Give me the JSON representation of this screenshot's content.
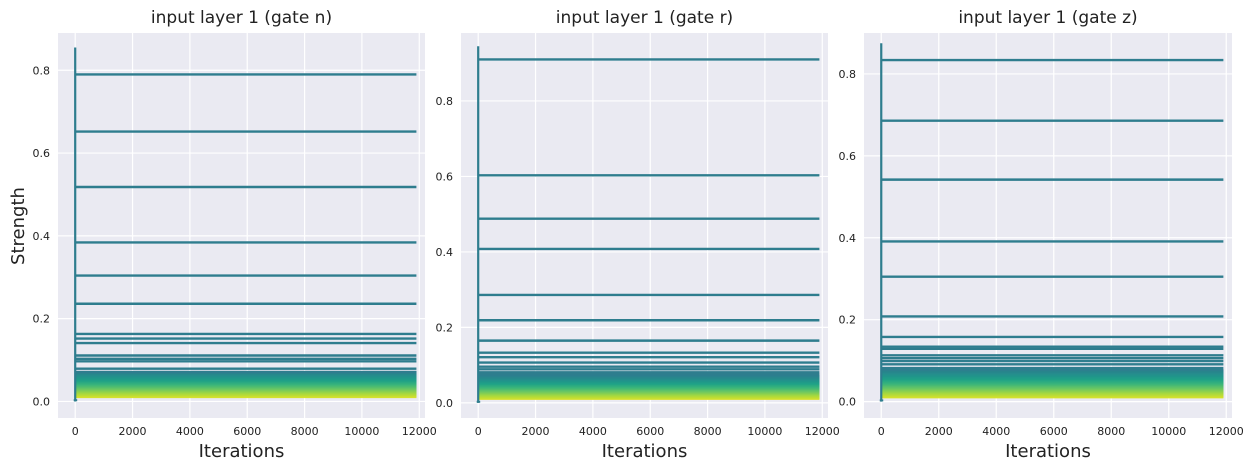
{
  "figure": {
    "ylabel": "Strength",
    "background_color": "#EAEAF2",
    "grid_color": "#FFFFFF",
    "trace_color": "#2E7D8E",
    "colormap": [
      "#2C7F8E",
      "#23908C",
      "#1FA187",
      "#3BB57A",
      "#6CC762",
      "#A6D83F",
      "#D8E22A"
    ]
  },
  "chart_data": [
    {
      "type": "line",
      "title": "input layer 1 (gate n)",
      "xlabel": "Iterations",
      "ylabel": "Strength",
      "xlim": [
        -600,
        12200
      ],
      "ylim": [
        -0.04,
        0.89
      ],
      "xticks": [
        0,
        2000,
        4000,
        6000,
        8000,
        10000,
        12000
      ],
      "yticks": [
        0.0,
        0.2,
        0.4,
        0.6,
        0.8
      ],
      "ytick_labels": [
        "0.0",
        "0.2",
        "0.4",
        "0.6",
        "0.8"
      ],
      "xtick_labels": [
        "0",
        "2000",
        "4000",
        "6000",
        "8000",
        "10000",
        "12000"
      ],
      "x_end": 11900,
      "initial_peak": 0.855,
      "series_final_values": [
        0.79,
        0.652,
        0.518,
        0.384,
        0.304,
        0.236,
        0.163,
        0.152,
        0.141,
        0.111,
        0.103,
        0.097,
        0.079,
        0.071
      ],
      "dense_band": [
        0.01,
        0.072
      ],
      "grid": true
    },
    {
      "type": "line",
      "title": "input layer 1 (gate r)",
      "xlabel": "Iterations",
      "ylabel": "",
      "xlim": [
        -600,
        12200
      ],
      "ylim": [
        -0.04,
        0.98
      ],
      "xticks": [
        0,
        2000,
        4000,
        6000,
        8000,
        10000,
        12000
      ],
      "yticks": [
        0.0,
        0.2,
        0.4,
        0.6,
        0.8
      ],
      "ytick_labels": [
        "0.0",
        "0.2",
        "0.4",
        "0.6",
        "0.8"
      ],
      "xtick_labels": [
        "0",
        "2000",
        "4000",
        "6000",
        "8000",
        "10000",
        "12000"
      ],
      "x_end": 11900,
      "initial_peak": 0.945,
      "series_final_values": [
        0.91,
        0.603,
        0.488,
        0.408,
        0.286,
        0.219,
        0.165,
        0.133,
        0.121,
        0.107,
        0.096,
        0.089,
        0.081,
        0.076
      ],
      "dense_band": [
        0.01,
        0.073
      ],
      "grid": true
    },
    {
      "type": "line",
      "title": "input layer 1 (gate z)",
      "xlabel": "Iterations",
      "ylabel": "",
      "xlim": [
        -600,
        12200
      ],
      "ylim": [
        -0.04,
        0.9
      ],
      "xticks": [
        0,
        2000,
        4000,
        6000,
        8000,
        10000,
        12000
      ],
      "yticks": [
        0.0,
        0.2,
        0.4,
        0.6,
        0.8
      ],
      "ytick_labels": [
        "0.0",
        "0.2",
        "0.4",
        "0.6",
        "0.8"
      ],
      "xtick_labels": [
        "0",
        "2000",
        "4000",
        "6000",
        "8000",
        "10000",
        "12000"
      ],
      "x_end": 11900,
      "initial_peak": 0.875,
      "series_final_values": [
        0.834,
        0.686,
        0.542,
        0.391,
        0.305,
        0.208,
        0.158,
        0.134,
        0.129,
        0.113,
        0.106,
        0.099,
        0.091,
        0.082
      ],
      "dense_band": [
        0.01,
        0.078
      ],
      "grid": true
    }
  ]
}
